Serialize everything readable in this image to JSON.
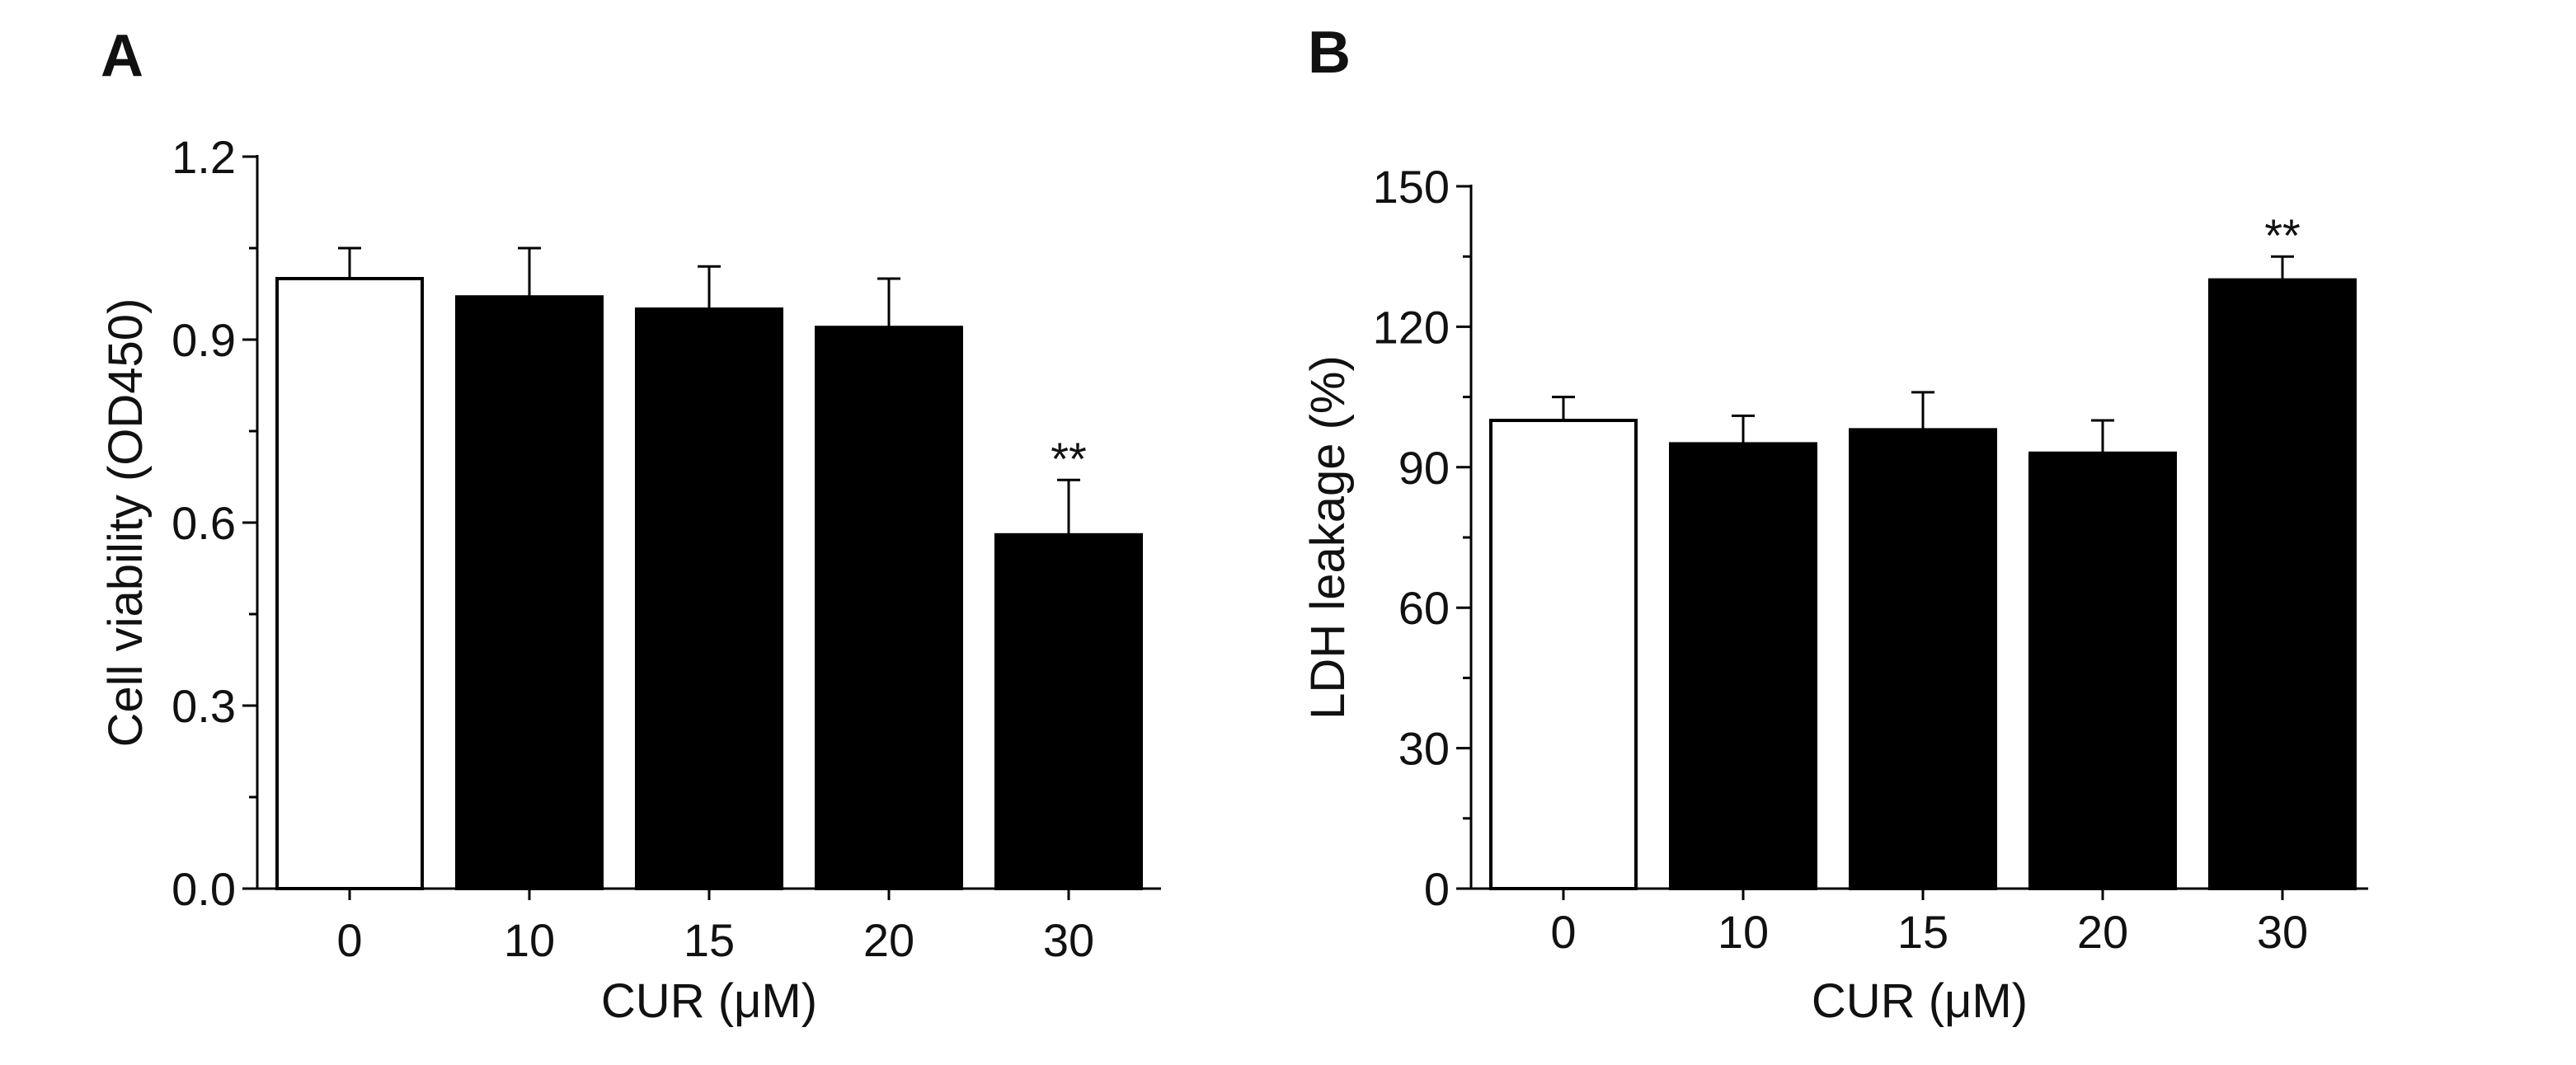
{
  "chart_data": [
    {
      "panel": "A",
      "type": "bar",
      "title": "",
      "xlabel": "CUR (μM)",
      "ylabel": "Cell viability (OD450)",
      "categories": [
        "0",
        "10",
        "15",
        "20",
        "30"
      ],
      "values": [
        1.0,
        0.97,
        0.95,
        0.92,
        0.58
      ],
      "errors": [
        0.05,
        0.08,
        0.07,
        0.08,
        0.09
      ],
      "bar_colors": [
        "#ffffff",
        "#000000",
        "#000000",
        "#000000",
        "#000000"
      ],
      "ylim": [
        0,
        1.2
      ],
      "yticks": [
        0.0,
        0.3,
        0.6,
        0.9,
        1.2
      ],
      "ytick_labels": [
        "0.0",
        "0.3",
        "0.6",
        "0.9",
        "1.2"
      ],
      "annotations": [
        {
          "category": "30",
          "text": "**"
        }
      ],
      "grid": false
    },
    {
      "panel": "B",
      "type": "bar",
      "title": "",
      "xlabel": "CUR (μM)",
      "ylabel": "LDH leakage (%)",
      "categories": [
        "0",
        "10",
        "15",
        "20",
        "30"
      ],
      "values": [
        100,
        95,
        98,
        93,
        130
      ],
      "errors": [
        5,
        6,
        8,
        7,
        5
      ],
      "bar_colors": [
        "#ffffff",
        "#000000",
        "#000000",
        "#000000",
        "#000000"
      ],
      "ylim": [
        0,
        150
      ],
      "yticks": [
        0,
        30,
        60,
        90,
        120,
        150
      ],
      "ytick_labels": [
        "0",
        "30",
        "60",
        "90",
        "120",
        "150"
      ],
      "annotations": [
        {
          "category": "30",
          "text": "**"
        }
      ],
      "grid": false
    }
  ]
}
